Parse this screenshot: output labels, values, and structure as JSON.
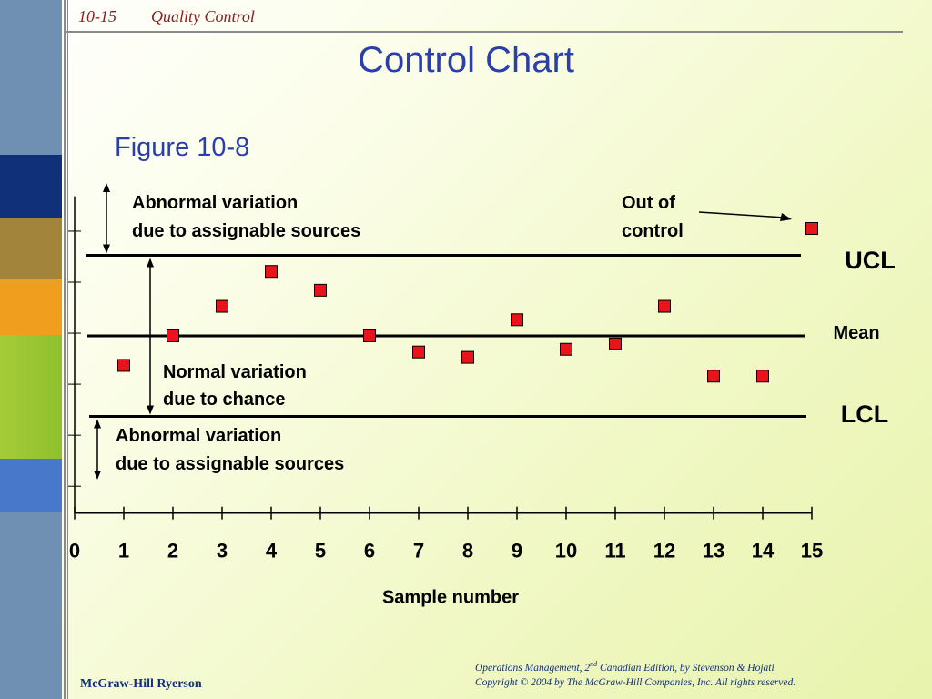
{
  "header": {
    "slide_number": "10-15",
    "section": "Quality Control"
  },
  "title": "Control Chart",
  "figure_label": "Figure 10-8",
  "footer": {
    "publisher": "McGraw-Hill Ryerson",
    "citation_prefix": "Operations Management, 2",
    "citation_sup": "nd",
    "citation_suffix": " Canadian Edition, by Stevenson & Hojati",
    "copyright": "Copyright © 2004 by The McGraw-Hill Companies, Inc.  All rights reserved."
  },
  "colors": {
    "sidebar": "#6f8fb3",
    "title": "#2b3fa8",
    "header": "#8b1d1d",
    "marker": "#e8141a"
  },
  "chart_data": {
    "type": "scatter",
    "xlabel": "Sample number",
    "ylabel": "",
    "x_ticks": [
      0,
      1,
      2,
      3,
      4,
      5,
      6,
      7,
      8,
      9,
      10,
      11,
      12,
      13,
      14,
      15
    ],
    "xlim": [
      0,
      15
    ],
    "ylim": [
      -3.3,
      2.6
    ],
    "control_lines": [
      {
        "label": "UCL",
        "value": 1.5
      },
      {
        "label": "Mean",
        "value": 0
      },
      {
        "label": "LCL",
        "value": -1.5
      }
    ],
    "points": [
      {
        "x": 1,
        "y": -0.55
      },
      {
        "x": 2,
        "y": 0
      },
      {
        "x": 3,
        "y": 0.55
      },
      {
        "x": 4,
        "y": 1.2
      },
      {
        "x": 5,
        "y": 0.85
      },
      {
        "x": 6,
        "y": 0
      },
      {
        "x": 7,
        "y": -0.3
      },
      {
        "x": 8,
        "y": -0.4
      },
      {
        "x": 9,
        "y": 0.3
      },
      {
        "x": 10,
        "y": -0.25
      },
      {
        "x": 11,
        "y": -0.15
      },
      {
        "x": 12,
        "y": 0.55
      },
      {
        "x": 13,
        "y": -0.75
      },
      {
        "x": 14,
        "y": -0.75
      },
      {
        "x": 15,
        "y": 2.0
      }
    ],
    "annotations": {
      "abnormal_upper": [
        "Abnormal variation",
        "due to assignable sources"
      ],
      "out_of_control": [
        "Out of",
        "control"
      ],
      "normal": [
        "Normal variation",
        "due to chance"
      ],
      "abnormal_lower": [
        "Abnormal variation",
        "due to assignable sources"
      ]
    }
  }
}
